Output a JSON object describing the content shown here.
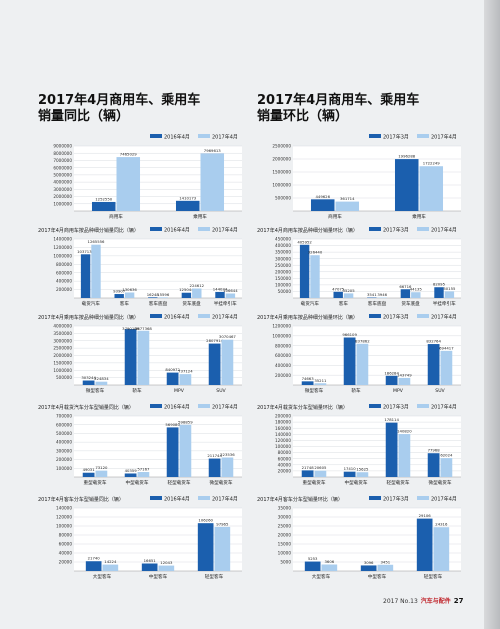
{
  "left_title": "2017年4月商用车、乘用车\n销量同比（辆）",
  "right_title": "2017年4月商用车、乘用车\n销量环比（辆）",
  "colors": {
    "dark": "#1b5fae",
    "light": "#a9cdee"
  },
  "footer": {
    "issue": "2017 No.13",
    "brand": "汽车与配件",
    "page": "27"
  },
  "chart_data": [
    {
      "type": "bar",
      "title": "",
      "legend": [
        "2016年4月",
        "2017年4月"
      ],
      "categories": [
        "商用车",
        "乘用车"
      ],
      "ylim": [
        0,
        9000000
      ],
      "yticks": [
        "9000000",
        "8000000",
        "7000000",
        "6000000",
        "5000000",
        "4000000",
        "3000000",
        "2000000",
        "1000000"
      ],
      "series": [
        {
          "name": "2016年4月",
          "values": [
            1252550,
            1410173
          ]
        },
        {
          "name": "2017年4月",
          "values": [
            7465029,
            7969613
          ]
        }
      ],
      "value_labels": [
        [
          "1252550",
          "1410173"
        ],
        [
          "7465029",
          "7969613"
        ]
      ]
    },
    {
      "type": "bar",
      "title": "",
      "legend": [
        "2017年3月",
        "2017年4月"
      ],
      "categories": [
        "商用车",
        "乘用车"
      ],
      "ylim": [
        0,
        2500000
      ],
      "yticks": [
        "2500000",
        "2000000",
        "1500000",
        "1000000",
        "500000"
      ],
      "series": [
        {
          "name": "2017年3月",
          "values": [
            449626,
            1996288
          ]
        },
        {
          "name": "2017年4月",
          "values": [
            361714,
            1722249
          ]
        }
      ],
      "value_labels": [
        [
          "449626",
          "1996288"
        ],
        [
          "361714",
          "1722249"
        ]
      ]
    },
    {
      "type": "bar",
      "title": "2017年4月商用车按品种细分销量同比（辆）",
      "legend": [
        "2016年4月",
        "2017年4月"
      ],
      "categories": [
        "载货汽车",
        "客车",
        "客车底盘",
        "货车底盘",
        "半挂牵引车"
      ],
      "ylim": [
        0,
        1400000
      ],
      "yticks": [
        "1400000",
        "1200000",
        "1000000",
        "800000",
        "600000",
        "400000",
        "200000"
      ],
      "series": [
        {
          "name": "2016年4月",
          "values": [
            1037132,
            93907,
            16248,
            125044,
            144034
          ]
        },
        {
          "name": "2017年4月",
          "values": [
            1265556,
            130636,
            15596,
            224612,
            106644
          ]
        }
      ],
      "value_labels": [
        [
          "1037132",
          "93907",
          "16248",
          "125044",
          "144034"
        ],
        [
          "1265556",
          "130636",
          "15596",
          "224612",
          "106644"
        ]
      ]
    },
    {
      "type": "bar",
      "title": "2017年4月商用车按品种细分销量环比（辆）",
      "legend": [
        "2017年3月",
        "2017年4月"
      ],
      "categories": [
        "载货汽车",
        "客车",
        "客车底盘",
        "货车底盘",
        "半挂牵引车"
      ],
      "ylim": [
        0,
        450000
      ],
      "yticks": [
        "450000",
        "400000",
        "350000",
        "300000",
        "250000",
        "200000",
        "150000",
        "100000",
        "50000"
      ],
      "series": [
        {
          "name": "2017年3月",
          "values": [
            405952,
            47075,
            3541,
            66716,
            82095
          ]
        },
        {
          "name": "2017年4月",
          "values": [
            326440,
            35205,
            3946,
            44135,
            50155
          ]
        }
      ],
      "value_labels": [
        [
          "405952",
          "47075",
          "3541",
          "66716",
          "82095"
        ],
        [
          "326440",
          "35205",
          "3946",
          "44135",
          "50155"
        ]
      ]
    },
    {
      "type": "bar",
      "title": "2017年4月乘用车按品种细分销量同比（辆）",
      "legend": [
        "2016年4月",
        "2017年4月"
      ],
      "categories": [
        "微型客车",
        "轿车",
        "MPV",
        "SUV"
      ],
      "ylim": [
        0,
        4000000
      ],
      "yticks": [
        "4000000",
        "3500000",
        "3000000",
        "2500000",
        "2000000",
        "1500000",
        "1000000",
        "500000"
      ],
      "series": [
        {
          "name": "2016年4月",
          "values": [
            303244,
            3790189,
            840972,
            2807914
          ]
        },
        {
          "name": "2017年4月",
          "values": [
            224834,
            3677368,
            737124,
            3070467
          ]
        }
      ],
      "value_labels": [
        [
          "303244",
          "3790189",
          "840972",
          "2807914"
        ],
        [
          "224834",
          "3677368",
          "737124",
          "3070467"
        ]
      ]
    },
    {
      "type": "bar",
      "title": "2017年4月乘用车按品种细分销量环比（辆）",
      "legend": [
        "2017年3月",
        "2017年4月"
      ],
      "categories": [
        "微型客车",
        "轿车",
        "MPV",
        "SUV"
      ],
      "ylim": [
        0,
        1200000
      ],
      "yticks": [
        "1200000",
        "1000000",
        "800000",
        "600000",
        "400000",
        "200000"
      ],
      "series": [
        {
          "name": "2017年3月",
          "values": [
            74663,
            966109,
            186284,
            832764
          ]
        },
        {
          "name": "2017年4月",
          "values": [
            35211,
            837862,
            143749,
            694417
          ]
        }
      ],
      "value_labels": [
        [
          "74663",
          "966109",
          "186284",
          "832764"
        ],
        [
          "35211",
          "837862",
          "143749",
          "694417"
        ]
      ]
    },
    {
      "type": "bar",
      "title": "2017年4月载货汽车分车型销量同比（辆）",
      "legend": [
        "2016年4月",
        "2017年4月"
      ],
      "categories": [
        "重型载货车",
        "中型载货车",
        "轻型载货车",
        "微型载货车"
      ],
      "ylim": [
        0,
        700000
      ],
      "yticks": [
        "700000",
        "600000",
        "500000",
        "400000",
        "300000",
        "200000",
        "100000"
      ],
      "series": [
        {
          "name": "2016年4月",
          "values": [
            49031,
            40359,
            569080,
            211744
          ]
        },
        {
          "name": "2017年4月",
          "values": [
            73120,
            57167,
            598859,
            223536
          ]
        }
      ],
      "value_labels": [
        [
          "49031",
          "40359",
          "569080",
          "211744"
        ],
        [
          "73120",
          "57167",
          "598859",
          "223536"
        ]
      ]
    },
    {
      "type": "bar",
      "title": "2017年4月载货车分车型销量环比（辆）",
      "legend": [
        "2017年3月",
        "2017年4月"
      ],
      "categories": [
        "重型载货车",
        "中型载货车",
        "轻型载货车",
        "微型载货车"
      ],
      "ylim": [
        0,
        200000
      ],
      "yticks": [
        "200000",
        "180000",
        "160000",
        "140000",
        "120000",
        "100000",
        "80000",
        "60000",
        "40000",
        "20000"
      ],
      "series": [
        {
          "name": "2017年3月",
          "values": [
            21748,
            17410,
            178114,
            77968
          ]
        },
        {
          "name": "2017年4月",
          "values": [
            20605,
            15625,
            140820,
            62024
          ]
        }
      ],
      "value_labels": [
        [
          "21748",
          "17410",
          "178114",
          "77968"
        ],
        [
          "20605",
          "15625",
          "140820",
          "62024"
        ]
      ]
    },
    {
      "type": "bar",
      "title": "2017年4月客车分车型销量同比（辆）",
      "legend": [
        "2016年4月",
        "2017年4月"
      ],
      "categories": [
        "大型客车",
        "中型客车",
        "轻型客车"
      ],
      "ylim": [
        0,
        140000
      ],
      "yticks": [
        "140000",
        "120000",
        "100000",
        "80000",
        "60000",
        "40000",
        "20000"
      ],
      "series": [
        {
          "name": "2016年4月",
          "values": [
            21740,
            16651,
            106260
          ]
        },
        {
          "name": "2017年4月",
          "values": [
            14224,
            12043,
            97965
          ]
        }
      ],
      "value_labels": [
        [
          "21740",
          "16651",
          "106260"
        ],
        [
          "14224",
          "12043",
          "97965"
        ]
      ]
    },
    {
      "type": "bar",
      "title": "2017年4月客车分车型销量环比（辆）",
      "legend": [
        "2017年3月",
        "2017年4月"
      ],
      "categories": [
        "大型客车",
        "中型客车",
        "轻型客车"
      ],
      "ylim": [
        0,
        35000
      ],
      "yticks": [
        "35000",
        "30000",
        "25000",
        "20000",
        "15000",
        "10000",
        "5000"
      ],
      "series": [
        {
          "name": "2017年3月",
          "values": [
            5253,
            3096,
            29106
          ]
        },
        {
          "name": "2017年4月",
          "values": [
            3606,
            3451,
            24316
          ]
        }
      ],
      "value_labels": [
        [
          "5253",
          "3096",
          "29106"
        ],
        [
          "3606",
          "3451",
          "24316"
        ]
      ]
    }
  ]
}
